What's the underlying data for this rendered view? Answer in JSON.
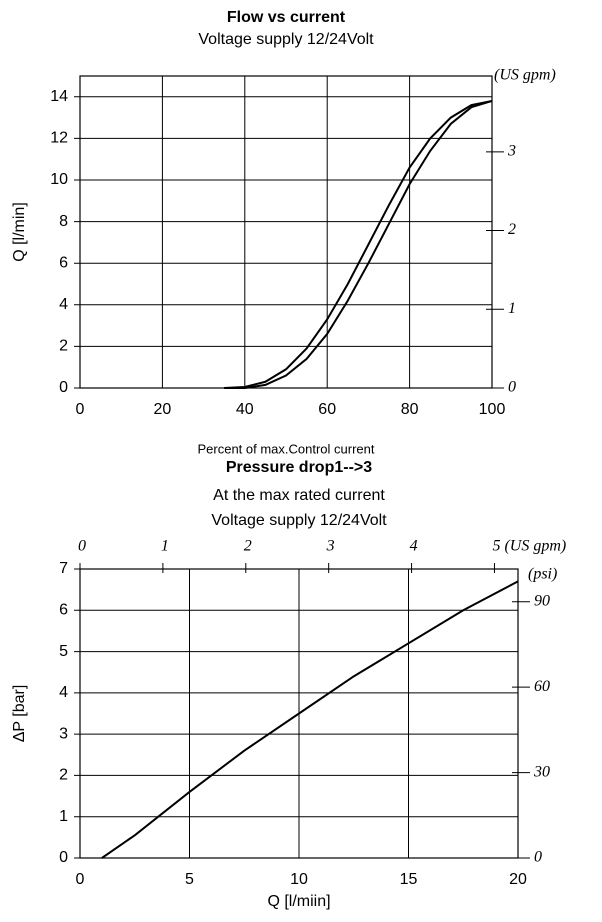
{
  "chart_data": [
    {
      "type": "line",
      "title": "Flow vs current",
      "subtitle": "Voltage supply 12/24Volt",
      "xlabel": "Percent of max.Control current",
      "ylabel": "Q [l/min]",
      "x": [
        35,
        40,
        45,
        50,
        55,
        60,
        65,
        70,
        75,
        80,
        85,
        90,
        95,
        100
      ],
      "series": [
        {
          "color": "#000000",
          "values": [
            0,
            0.05,
            0.3,
            0.9,
            1.9,
            3.3,
            5.0,
            6.9,
            8.8,
            10.6,
            12.0,
            13.0,
            13.6,
            13.8
          ]
        },
        {
          "color": "#000000",
          "values": [
            0,
            0,
            0.15,
            0.6,
            1.4,
            2.6,
            4.2,
            6.0,
            7.9,
            9.8,
            11.4,
            12.7,
            13.5,
            13.8
          ]
        }
      ],
      "xlim": [
        0,
        100
      ],
      "xticks": [
        0,
        20,
        40,
        60,
        80,
        100
      ],
      "ylim": [
        0,
        15
      ],
      "yticks": [
        0,
        2,
        4,
        6,
        8,
        10,
        12,
        14
      ],
      "y2label": "(US gpm)",
      "y2lim": [
        0,
        3.963
      ],
      "y2ticks": [
        0,
        1,
        2,
        3
      ],
      "grid": true
    },
    {
      "type": "line",
      "title": "Pressure drop1-->3",
      "subtitle": [
        "At the max rated current",
        "Voltage supply 12/24Volt"
      ],
      "xlabel": "Q [l/miin]",
      "ylabel": "ΔP [bar]",
      "x": [
        1,
        2.5,
        5,
        7.5,
        10,
        12.5,
        15,
        17.5,
        20
      ],
      "series": [
        {
          "color": "#000000",
          "values": [
            0,
            0.55,
            1.6,
            2.6,
            3.5,
            4.4,
            5.2,
            6.0,
            6.7
          ]
        }
      ],
      "xlim": [
        0,
        20
      ],
      "xticks": [
        0,
        5,
        10,
        15,
        20
      ],
      "ylim": [
        0,
        7
      ],
      "yticks": [
        0,
        1,
        2,
        3,
        4,
        5,
        6,
        7
      ],
      "x2label": "(US gpm)",
      "x2lim": [
        0,
        5.284
      ],
      "x2ticks": [
        0,
        1,
        2,
        3,
        4,
        5
      ],
      "y2label": "(psi)",
      "y2lim": [
        0,
        101.5
      ],
      "y2ticks": [
        0,
        30,
        60,
        90
      ],
      "grid": true
    }
  ]
}
